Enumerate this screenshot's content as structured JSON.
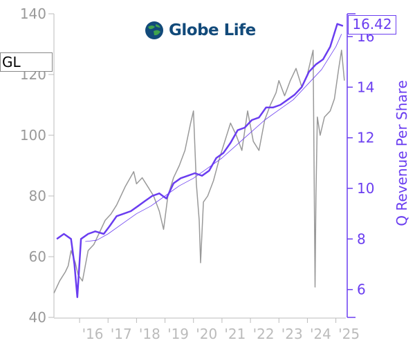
{
  "ticker": "GL",
  "logo": {
    "text": "Globe Life",
    "icon": "globe-icon"
  },
  "last_value_label": "16.42",
  "colors": {
    "price": "#999999",
    "revenue": "#6a3df0",
    "trend": "#6a3df0",
    "left_axis": "#bbbbbb",
    "right_axis": "#6a3df0"
  },
  "chart_data": {
    "type": "line",
    "title": "",
    "xlabel": "",
    "ylabel_left": "",
    "ylabel_right": "Q Revenue Per Share",
    "x_ticks": [
      "'16",
      "'17",
      "'18",
      "'19",
      "'20",
      "'21",
      "'22",
      "'23",
      "'24",
      "'25"
    ],
    "x_tick_years": [
      2016,
      2017,
      2018,
      2019,
      2020,
      2021,
      2022,
      2023,
      2024,
      2025
    ],
    "xlim": [
      2015.1,
      2025.35
    ],
    "ylim_left": [
      40,
      140
    ],
    "left_ticks": [
      40,
      60,
      80,
      100,
      120,
      140
    ],
    "ylim_right": [
      4.9,
      16.9
    ],
    "right_ticks": [
      6,
      8,
      10,
      12,
      14,
      16
    ],
    "series": [
      {
        "name": "",
        "axis": "left",
        "color": "#999999",
        "x": [
          2015.1,
          2015.3,
          2015.5,
          2015.6,
          2015.7,
          2015.85,
          2015.95,
          2016.1,
          2016.3,
          2016.5,
          2016.7,
          2016.9,
          2017.1,
          2017.3,
          2017.6,
          2017.9,
          2018.0,
          2018.2,
          2018.4,
          2018.6,
          2018.8,
          2018.95,
          2019.1,
          2019.3,
          2019.5,
          2019.7,
          2019.9,
          2020.0,
          2020.1,
          2020.2,
          2020.25,
          2020.35,
          2020.5,
          2020.7,
          2020.9,
          2021.1,
          2021.3,
          2021.5,
          2021.7,
          2021.9,
          2022.1,
          2022.3,
          2022.5,
          2022.7,
          2022.9,
          2023.0,
          2023.2,
          2023.4,
          2023.6,
          2023.8,
          2024.0,
          2024.1,
          2024.2,
          2024.27,
          2024.3,
          2024.35,
          2024.45,
          2024.6,
          2024.8,
          2024.95,
          2025.1,
          2025.2,
          2025.3
        ],
        "values": [
          48,
          52,
          55,
          57,
          62,
          58,
          54,
          52,
          62,
          64,
          68,
          72,
          74,
          77,
          83,
          88,
          84,
          86,
          83,
          80,
          75,
          69,
          80,
          86,
          90,
          95,
          104,
          108,
          84,
          72,
          58,
          78,
          80,
          85,
          92,
          98,
          104,
          100,
          95,
          108,
          98,
          95,
          105,
          110,
          114,
          118,
          113,
          118,
          122,
          116,
          120,
          124,
          128,
          50,
          80,
          106,
          100,
          106,
          108,
          112,
          122,
          128,
          118
        ]
      },
      {
        "name": "",
        "axis": "right",
        "color": "#6a3df0",
        "x": [
          2015.2,
          2015.45,
          2015.7,
          2015.82,
          2015.92,
          2016.05,
          2016.3,
          2016.55,
          2016.85,
          2017.05,
          2017.3,
          2017.55,
          2017.8,
          2018.05,
          2018.3,
          2018.55,
          2018.8,
          2018.92,
          2019.05,
          2019.3,
          2019.55,
          2019.8,
          2020.05,
          2020.3,
          2020.55,
          2020.8,
          2021.05,
          2021.3,
          2021.55,
          2021.8,
          2022.05,
          2022.3,
          2022.55,
          2022.8,
          2023.05,
          2023.3,
          2023.55,
          2023.8,
          2024.05,
          2024.3,
          2024.55,
          2024.8,
          2025.05,
          2025.25
        ],
        "values": [
          8.0,
          8.2,
          8.0,
          7.0,
          5.7,
          8.0,
          8.2,
          8.3,
          8.2,
          8.5,
          8.9,
          9.0,
          9.1,
          9.3,
          9.5,
          9.7,
          9.8,
          9.7,
          9.6,
          10.2,
          10.4,
          10.5,
          10.6,
          10.5,
          10.7,
          11.2,
          11.4,
          11.8,
          12.3,
          12.4,
          12.7,
          12.8,
          13.2,
          13.2,
          13.3,
          13.5,
          13.7,
          14.0,
          14.6,
          14.9,
          15.1,
          15.6,
          16.5,
          16.42
        ]
      },
      {
        "name": "",
        "axis": "right",
        "color": "#6a3df0",
        "style": "thin",
        "x": [
          2016.2,
          2016.6,
          2017.0,
          2017.5,
          2018.0,
          2018.5,
          2019.0,
          2019.5,
          2020.0,
          2020.5,
          2021.0,
          2021.5,
          2022.0,
          2022.5,
          2023.0,
          2023.5,
          2024.0,
          2024.5,
          2025.0,
          2025.2
        ],
        "values": [
          7.9,
          7.95,
          8.2,
          8.6,
          9.0,
          9.3,
          9.7,
          10.1,
          10.4,
          10.8,
          11.2,
          11.7,
          12.2,
          12.7,
          13.1,
          13.5,
          14.1,
          14.7,
          15.6,
          16.1
        ]
      }
    ],
    "legend": "none",
    "grid": false
  }
}
